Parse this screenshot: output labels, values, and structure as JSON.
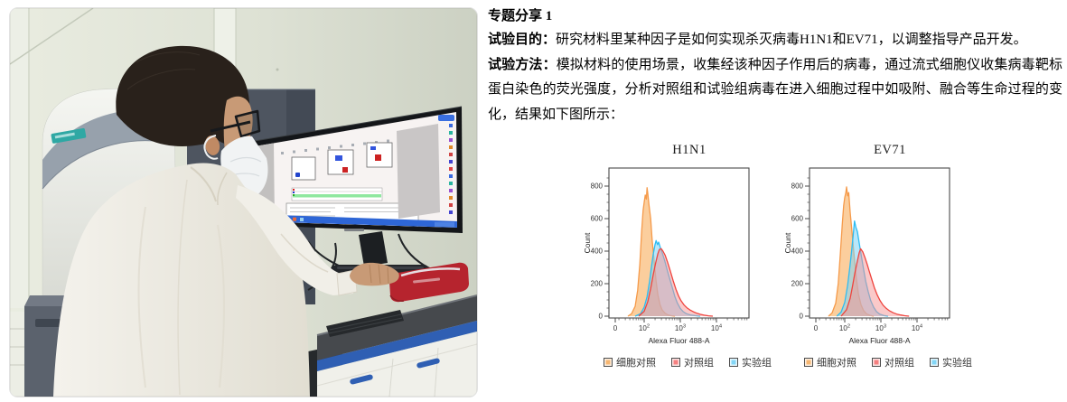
{
  "article": {
    "heading": "专题分享 1",
    "paragraphs": [
      {
        "label": "试验目的：",
        "text": "研究材料里某种因子是如何实现杀灭病毒H1N1和EV71，以调整指导产品开发。"
      },
      {
        "label": "试验方法：",
        "text": "模拟材料的使用场景，收集经该种因子作用后的病毒，通过流式细胞仪收集病毒靶标蛋白染色的荧光强度，分析对照组和试验组病毒在进入细胞过程中如吸附、融合等生命过程的变化，结果如下图所示："
      }
    ]
  },
  "photo": {
    "alt": "Researcher in white lab coat and face mask seated at a lab bench, operating flow cytometry software on a widescreen monitor next to a flow cytometer instrument"
  },
  "legend": {
    "items": [
      {
        "label": "细胞对照",
        "color": "#F6B671"
      },
      {
        "label": "对照组",
        "color": "#F58080"
      },
      {
        "label": "实验组",
        "color": "#83D6F6"
      }
    ]
  },
  "chart_data": [
    {
      "type": "area",
      "title": "H1N1",
      "xlabel": "Alexa Fluor 488-A",
      "ylabel": "Count",
      "x_scale": "biexponential-log",
      "x_ticks": [
        "0",
        "10^2",
        "10^3",
        "10^4"
      ],
      "y_ticks": [
        0,
        200,
        400,
        600,
        800
      ],
      "ylim": [
        0,
        880
      ],
      "grid": false,
      "legend_position": "below",
      "series": [
        {
          "name": "细胞对照",
          "key": "cell-control",
          "stroke": "#F59A4A",
          "fill": "rgba(248,176,97,0.62)",
          "points": [
            [
              1.55,
              0
            ],
            [
              1.65,
              15
            ],
            [
              1.75,
              60
            ],
            [
              1.82,
              160
            ],
            [
              1.88,
              320
            ],
            [
              1.93,
              520
            ],
            [
              1.97,
              650
            ],
            [
              2.0,
              700
            ],
            [
              2.03,
              745
            ],
            [
              2.06,
              720
            ],
            [
              2.08,
              790
            ],
            [
              2.1,
              755
            ],
            [
              2.13,
              690
            ],
            [
              2.18,
              600
            ],
            [
              2.22,
              470
            ],
            [
              2.28,
              330
            ],
            [
              2.33,
              215
            ],
            [
              2.38,
              130
            ],
            [
              2.44,
              70
            ],
            [
              2.5,
              38
            ],
            [
              2.58,
              18
            ],
            [
              2.66,
              8
            ],
            [
              2.75,
              3
            ],
            [
              2.85,
              0
            ]
          ]
        },
        {
          "name": "实验组",
          "key": "experimental",
          "stroke": "#2EBCF2",
          "fill": "rgba(126,211,246,0.55)",
          "points": [
            [
              1.75,
              0
            ],
            [
              1.9,
              15
            ],
            [
              2.0,
              55
            ],
            [
              2.08,
              120
            ],
            [
              2.15,
              215
            ],
            [
              2.2,
              300
            ],
            [
              2.25,
              380
            ],
            [
              2.3,
              440
            ],
            [
              2.33,
              465
            ],
            [
              2.37,
              440
            ],
            [
              2.4,
              455
            ],
            [
              2.45,
              420
            ],
            [
              2.5,
              390
            ],
            [
              2.57,
              340
            ],
            [
              2.63,
              290
            ],
            [
              2.7,
              235
            ],
            [
              2.78,
              175
            ],
            [
              2.85,
              120
            ],
            [
              2.92,
              80
            ],
            [
              3.0,
              48
            ],
            [
              3.08,
              28
            ],
            [
              3.17,
              15
            ],
            [
              3.28,
              8
            ],
            [
              3.4,
              4
            ],
            [
              3.55,
              0
            ]
          ]
        },
        {
          "name": "对照组",
          "key": "control",
          "stroke": "#EF443E",
          "fill": "rgba(246,148,148,0.5)",
          "points": [
            [
              1.85,
              0
            ],
            [
              2.0,
              30
            ],
            [
              2.1,
              90
            ],
            [
              2.18,
              170
            ],
            [
              2.25,
              255
            ],
            [
              2.32,
              330
            ],
            [
              2.38,
              385
            ],
            [
              2.42,
              410
            ],
            [
              2.47,
              415
            ],
            [
              2.52,
              400
            ],
            [
              2.58,
              375
            ],
            [
              2.65,
              330
            ],
            [
              2.72,
              280
            ],
            [
              2.8,
              220
            ],
            [
              2.88,
              165
            ],
            [
              2.95,
              125
            ],
            [
              3.02,
              95
            ],
            [
              3.1,
              70
            ],
            [
              3.18,
              52
            ],
            [
              3.27,
              38
            ],
            [
              3.36,
              27
            ],
            [
              3.46,
              18
            ],
            [
              3.56,
              11
            ],
            [
              3.66,
              6
            ],
            [
              3.78,
              2
            ],
            [
              3.9,
              0
            ]
          ]
        }
      ]
    },
    {
      "type": "area",
      "title": "EV71",
      "xlabel": "Alexa Fluor 488-A",
      "ylabel": "Count",
      "x_scale": "biexponential-log",
      "x_ticks": [
        "0",
        "10^2",
        "10^3",
        "10^4"
      ],
      "y_ticks": [
        0,
        200,
        400,
        600,
        800
      ],
      "ylim": [
        0,
        880
      ],
      "grid": false,
      "legend_position": "below",
      "series": [
        {
          "name": "细胞对照",
          "key": "cell-control",
          "stroke": "#F59A4A",
          "fill": "rgba(248,176,97,0.62)",
          "points": [
            [
              1.55,
              0
            ],
            [
              1.65,
              20
            ],
            [
              1.75,
              80
            ],
            [
              1.82,
              200
            ],
            [
              1.88,
              390
            ],
            [
              1.93,
              560
            ],
            [
              1.97,
              680
            ],
            [
              2.0,
              730
            ],
            [
              2.03,
              760
            ],
            [
              2.05,
              795
            ],
            [
              2.08,
              740
            ],
            [
              2.11,
              760
            ],
            [
              2.15,
              640
            ],
            [
              2.2,
              520
            ],
            [
              2.26,
              370
            ],
            [
              2.32,
              235
            ],
            [
              2.38,
              135
            ],
            [
              2.45,
              70
            ],
            [
              2.52,
              35
            ],
            [
              2.6,
              15
            ],
            [
              2.7,
              5
            ],
            [
              2.8,
              0
            ]
          ]
        },
        {
          "name": "实验组",
          "key": "experimental",
          "stroke": "#2EBCF2",
          "fill": "rgba(126,211,246,0.55)",
          "points": [
            [
              1.78,
              0
            ],
            [
              1.9,
              25
            ],
            [
              2.0,
              85
            ],
            [
              2.08,
              190
            ],
            [
              2.14,
              300
            ],
            [
              2.19,
              400
            ],
            [
              2.23,
              490
            ],
            [
              2.27,
              585
            ],
            [
              2.31,
              545
            ],
            [
              2.35,
              520
            ],
            [
              2.4,
              450
            ],
            [
              2.46,
              370
            ],
            [
              2.52,
              290
            ],
            [
              2.58,
              215
            ],
            [
              2.65,
              150
            ],
            [
              2.72,
              95
            ],
            [
              2.8,
              55
            ],
            [
              2.88,
              28
            ],
            [
              2.97,
              12
            ],
            [
              3.08,
              4
            ],
            [
              3.2,
              0
            ]
          ]
        },
        {
          "name": "对照组",
          "key": "control",
          "stroke": "#EF443E",
          "fill": "rgba(246,148,148,0.5)",
          "points": [
            [
              1.9,
              0
            ],
            [
              2.05,
              40
            ],
            [
              2.15,
              110
            ],
            [
              2.22,
              190
            ],
            [
              2.28,
              265
            ],
            [
              2.34,
              330
            ],
            [
              2.4,
              390
            ],
            [
              2.44,
              415
            ],
            [
              2.5,
              395
            ],
            [
              2.56,
              360
            ],
            [
              2.62,
              320
            ],
            [
              2.68,
              275
            ],
            [
              2.75,
              225
            ],
            [
              2.82,
              175
            ],
            [
              2.9,
              130
            ],
            [
              2.98,
              95
            ],
            [
              3.06,
              68
            ],
            [
              3.15,
              48
            ],
            [
              3.24,
              33
            ],
            [
              3.34,
              21
            ],
            [
              3.44,
              13
            ],
            [
              3.55,
              7
            ],
            [
              3.66,
              3
            ],
            [
              3.78,
              0
            ]
          ]
        }
      ]
    }
  ]
}
